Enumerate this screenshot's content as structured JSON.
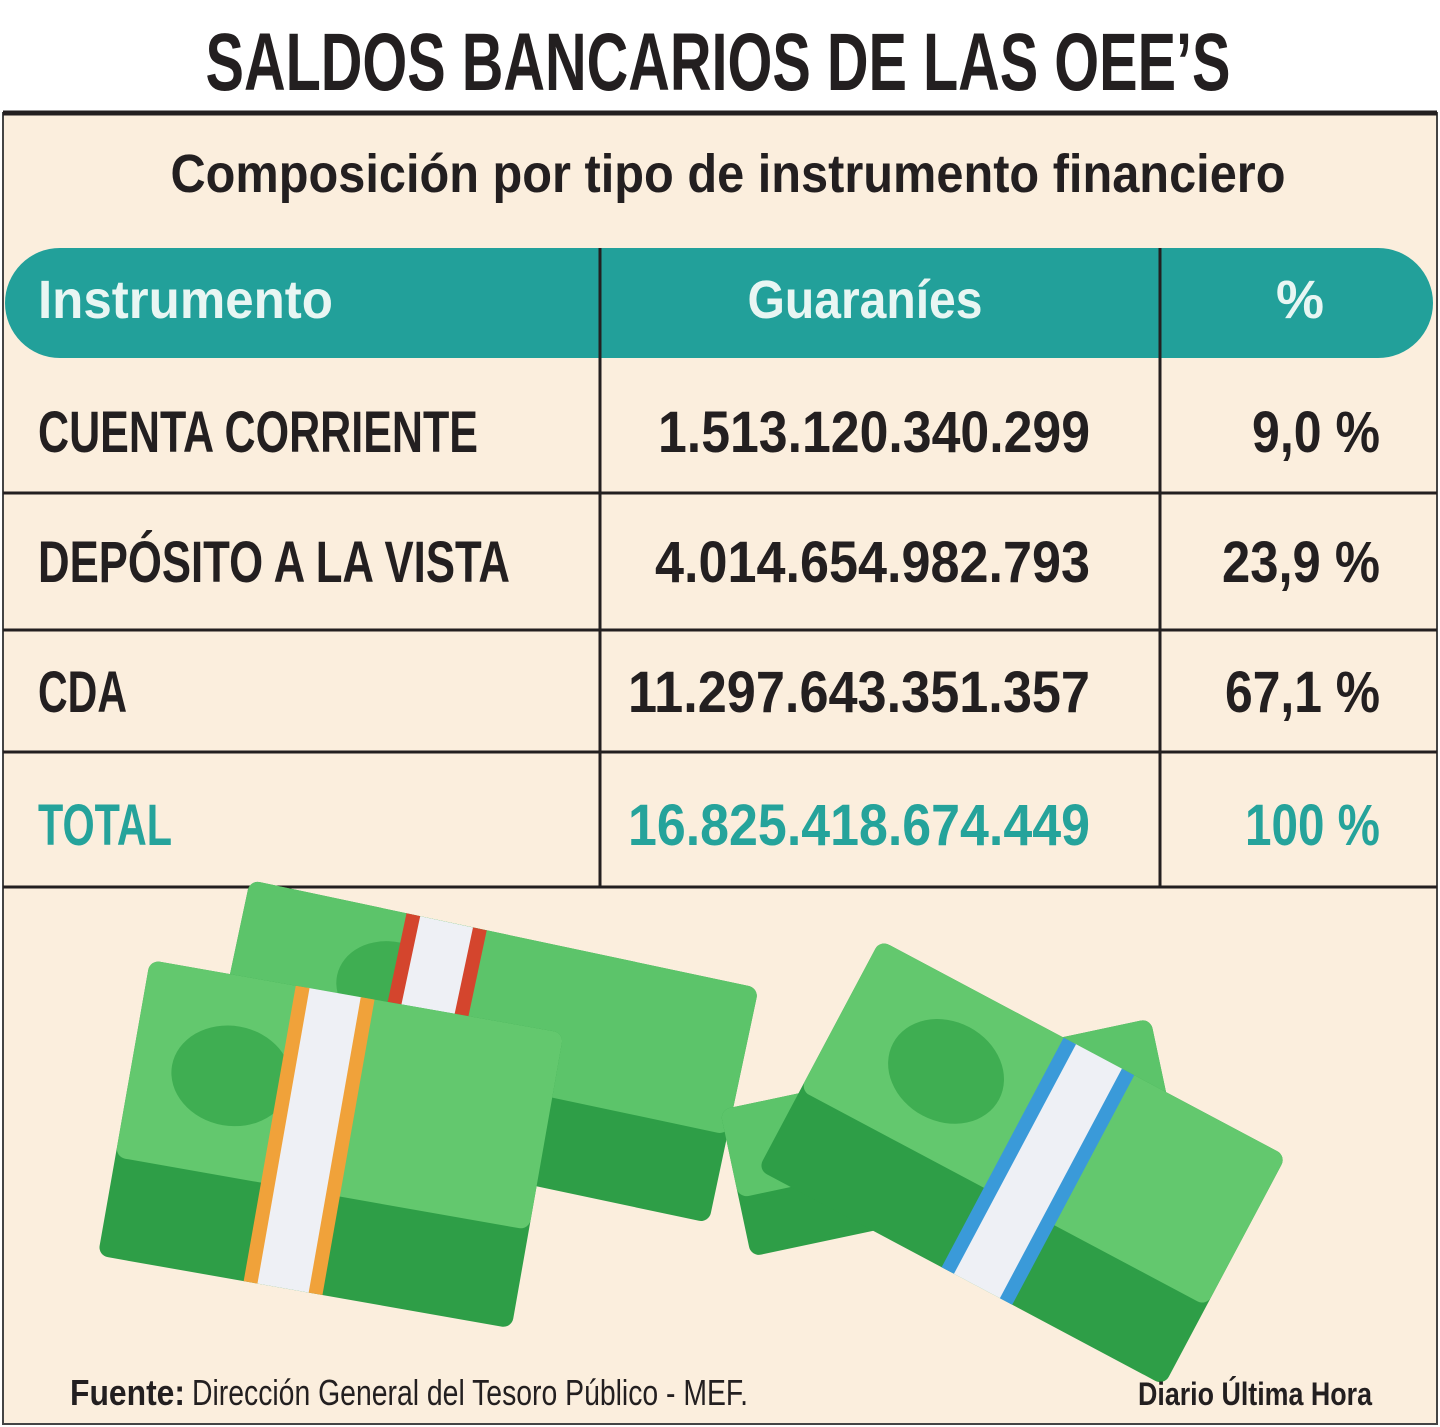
{
  "header": {
    "title": "SALDOS BANCARIOS DE LAS OEE’S",
    "subtitle": "Composición por tipo de instrumento financiero"
  },
  "table": {
    "columns": [
      "Instrumento",
      "Guaraníes",
      "%"
    ],
    "rows": [
      [
        "CUENTA CORRIENTE",
        "1.513.120.340.299",
        "9,0 %"
      ],
      [
        "DEPÓSITO A LA VISTA",
        "4.014.654.982.793",
        "23,9 %"
      ],
      [
        "CDA",
        "11.297.643.351.357",
        "67,1 %"
      ]
    ],
    "total": [
      "TOTAL",
      "16.825.418.674.449",
      "100 %"
    ]
  },
  "footer": {
    "source_label": "Fuente:",
    "source": "Dirección General del Tesoro Público - MEF.",
    "credit": "Diario Última Hora"
  }
}
